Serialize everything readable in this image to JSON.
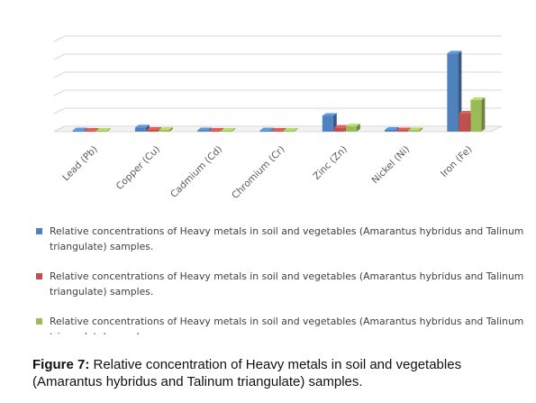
{
  "chart_data": {
    "type": "bar",
    "view": "3d-clustered",
    "categories": [
      "Lead (Pb)",
      "Copper (Cu)",
      "Cadmium (Cd)",
      "Chromium (Cr)",
      "Zinc (Zn)",
      "Nickel (Ni)",
      "Iron (Fe)"
    ],
    "series": [
      {
        "name": "Relative concentrations of Heavy metals in soil and vegetables (Amarantus hybridus and Talinum triangulate) samples.",
        "color": "#4F81BD",
        "values": [
          0.8,
          2.8,
          0.9,
          0.8,
          10.5,
          1.2,
          52.0
        ]
      },
      {
        "name": "Relative concentrations of Heavy metals in soil and vegetables (Amarantus hybridus and Talinum triangulate) samples.",
        "color": "#C0504D",
        "values": [
          0.5,
          1.2,
          0.6,
          0.5,
          2.6,
          0.9,
          12.0
        ]
      },
      {
        "name": "Relative concentrations of Heavy metals in soil and vegetables (Amarantus hybridus and Talinum triangulate) samples.",
        "color": "#9BBB59",
        "values": [
          0.5,
          1.1,
          0.5,
          0.6,
          3.5,
          1.0,
          21.0
        ]
      }
    ],
    "ylim": [
      0,
      60
    ],
    "grid": true,
    "y_tick_labels_shown": false,
    "legend_position": "bottom"
  },
  "caption": {
    "label": "Figure 7:",
    "text": " Relative concentration of Heavy metals in soil and vegetables (Amarantus hybridus and Talinum triangulate) samples."
  }
}
